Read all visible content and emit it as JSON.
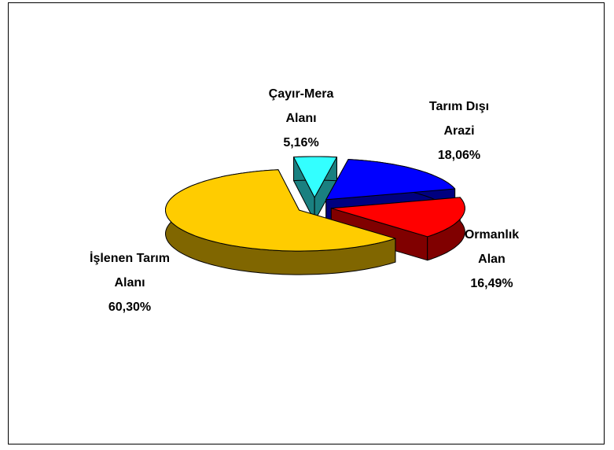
{
  "chart_data": {
    "type": "pie3d",
    "categories": [
      "Çayır-Mera Alanı",
      "Tarım Dışı Arazi",
      "Ormanlık Alan",
      "İşlenen Tarım Alanı"
    ],
    "values": [
      5.16,
      18.06,
      16.49,
      60.3
    ],
    "value_labels": [
      "5,16%",
      "18,06%",
      "16,49%",
      "60,30%"
    ],
    "colors": [
      "#33ffff",
      "#0000ff",
      "#ff0000",
      "#ffcc00"
    ]
  }
}
